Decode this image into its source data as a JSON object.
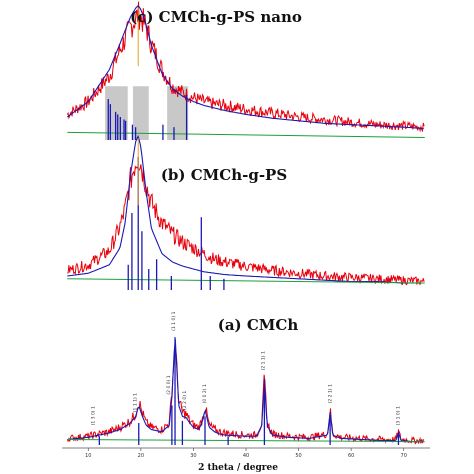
{
  "colors": {
    "observed": "#e8000b",
    "fit": "#1a1ab4",
    "background": "#1f9e3a",
    "sticks": "#1a1ab4",
    "shade": "#c8c8c8",
    "marker": "#e8a020"
  },
  "chart_data": {
    "type": "line",
    "xlabel": "2 theta / degree",
    "x_ticks": [
      "10",
      "20",
      "30",
      "40",
      "50",
      "60",
      "70"
    ],
    "xlim": [
      5,
      75
    ],
    "panels": [
      {
        "title": "(c) CMCh-g-PS nano",
        "series": [
          {
            "role": "observed",
            "x": [
              6,
              10,
              14,
              16,
              18,
              19,
              19.5,
              20,
              21,
              22,
              24,
              26,
              28,
              30,
              32,
              34,
              36,
              40,
              45,
              50,
              55,
              60,
              65,
              70,
              74
            ],
            "y": [
              0.2,
              0.3,
              0.5,
              0.7,
              0.88,
              0.95,
              0.98,
              0.96,
              0.88,
              0.75,
              0.55,
              0.42,
              0.37,
              0.33,
              0.3,
              0.28,
              0.27,
              0.24,
              0.21,
              0.18,
              0.16,
              0.14,
              0.12,
              0.11,
              0.1
            ]
          },
          {
            "role": "fit",
            "x": [
              6,
              10,
              14,
              16,
              18,
              19,
              19.5,
              20,
              21,
              22,
              24,
              26,
              28,
              30,
              32,
              34,
              36,
              40,
              45,
              50,
              55,
              60,
              65,
              70,
              74
            ],
            "y": [
              0.18,
              0.3,
              0.55,
              0.75,
              0.96,
              1.03,
              1.05,
              1.02,
              0.9,
              0.74,
              0.52,
              0.4,
              0.34,
              0.3,
              0.27,
              0.25,
              0.23,
              0.2,
              0.17,
              0.15,
              0.13,
              0.12,
              0.11,
              0.1,
              0.09
            ]
          },
          {
            "role": "background",
            "x": [
              6,
              74
            ],
            "y": [
              0.06,
              0.02
            ]
          }
        ],
        "sticks": [
          {
            "x": 13.8,
            "h": 0.32
          },
          {
            "x": 14.2,
            "h": 0.28
          },
          {
            "x": 15.2,
            "h": 0.22
          },
          {
            "x": 15.6,
            "h": 0.2
          },
          {
            "x": 16.1,
            "h": 0.18
          },
          {
            "x": 16.8,
            "h": 0.16
          },
          {
            "x": 17.1,
            "h": 0.15
          },
          {
            "x": 18.4,
            "h": 0.12
          },
          {
            "x": 19.0,
            "h": 0.1
          },
          {
            "x": 24.2,
            "h": 0.12
          },
          {
            "x": 26.3,
            "h": 0.1
          },
          {
            "x": 28.7,
            "h": 0.35
          }
        ],
        "shaded_bands": [
          [
            13.2,
            17.5
          ],
          [
            18.5,
            21.5
          ],
          [
            25.0,
            29.0
          ]
        ]
      },
      {
        "title": "(b) CMCh-g-PS",
        "series": [
          {
            "role": "observed",
            "x": [
              6,
              10,
              14,
              16,
              17,
              18,
              19,
              19.5,
              20,
              21,
              22,
              24,
              26,
              28,
              30,
              32,
              34,
              36,
              40,
              45,
              50,
              55,
              60,
              65,
              70,
              74
            ],
            "y": [
              0.14,
              0.18,
              0.28,
              0.45,
              0.58,
              0.78,
              0.92,
              0.95,
              0.9,
              0.75,
              0.62,
              0.48,
              0.4,
              0.34,
              0.3,
              0.26,
              0.22,
              0.2,
              0.17,
              0.14,
              0.12,
              0.1,
              0.09,
              0.08,
              0.07,
              0.06
            ]
          },
          {
            "role": "fit",
            "x": [
              6,
              10,
              14,
              16,
              17,
              18,
              19,
              19.5,
              20,
              21,
              22,
              24,
              26,
              28,
              30,
              32,
              34,
              36,
              40,
              45,
              50,
              55,
              60,
              65,
              70,
              74
            ],
            "y": [
              0.1,
              0.12,
              0.18,
              0.3,
              0.48,
              0.82,
              1.06,
              1.1,
              1.02,
              0.7,
              0.44,
              0.26,
              0.2,
              0.17,
              0.15,
              0.13,
              0.12,
              0.11,
              0.1,
              0.09,
              0.08,
              0.07,
              0.06,
              0.06,
              0.05,
              0.05
            ]
          },
          {
            "role": "background",
            "x": [
              6,
              74
            ],
            "y": [
              0.08,
              0.05
            ]
          }
        ],
        "sticks": [
          {
            "x": 17.6,
            "h": 0.18
          },
          {
            "x": 18.3,
            "h": 0.55
          },
          {
            "x": 19.5,
            "h": 0.95
          },
          {
            "x": 20.2,
            "h": 0.42
          },
          {
            "x": 21.5,
            "h": 0.15
          },
          {
            "x": 23.0,
            "h": 0.22
          },
          {
            "x": 25.8,
            "h": 0.1
          },
          {
            "x": 31.5,
            "h": 0.52
          },
          {
            "x": 33.2,
            "h": 0.1
          },
          {
            "x": 35.8,
            "h": 0.08
          }
        ],
        "shaded_bands": []
      },
      {
        "title": "(a) CMCh",
        "series": [
          {
            "role": "observed",
            "x": [
              6,
              10,
              12,
              14,
              16,
              18,
              19,
              19.6,
              20.2,
              21,
              22,
              24,
              25.4,
              25.9,
              26.5,
              27.2,
              27.9,
              28.6,
              29.3,
              30,
              31,
              31.6,
              32.2,
              33,
              34,
              35,
              36,
              40,
              42,
              43,
              43.5,
              44,
              45,
              48,
              52,
              55.5,
              56,
              56.5,
              58,
              62,
              66,
              68.5,
              69,
              69.5,
              72,
              74
            ],
            "y": [
              0.06,
              0.08,
              0.1,
              0.12,
              0.16,
              0.22,
              0.28,
              0.4,
              0.3,
              0.2,
              0.16,
              0.14,
              0.2,
              0.48,
              0.95,
              0.4,
              0.3,
              0.28,
              0.22,
              0.18,
              0.16,
              0.22,
              0.35,
              0.18,
              0.14,
              0.12,
              0.11,
              0.09,
              0.09,
              0.2,
              0.62,
              0.2,
              0.1,
              0.08,
              0.07,
              0.1,
              0.32,
              0.1,
              0.07,
              0.06,
              0.05,
              0.05,
              0.12,
              0.05,
              0.04,
              0.04
            ]
          },
          {
            "role": "fit",
            "x": [
              6,
              10,
              12,
              14,
              16,
              18,
              19,
              19.6,
              20.2,
              21,
              22,
              24,
              25.4,
              25.9,
              26.5,
              27.2,
              27.9,
              28.6,
              29.3,
              30,
              31,
              31.6,
              32.2,
              33,
              34,
              35,
              36,
              40,
              42,
              43,
              43.5,
              44,
              45,
              48,
              52,
              55.5,
              56,
              56.5,
              58,
              62,
              66,
              68.5,
              69,
              69.5,
              72,
              74
            ],
            "y": [
              0.05,
              0.07,
              0.09,
              0.11,
              0.14,
              0.2,
              0.26,
              0.36,
              0.27,
              0.18,
              0.14,
              0.12,
              0.18,
              0.44,
              1.0,
              0.36,
              0.26,
              0.25,
              0.2,
              0.16,
              0.14,
              0.2,
              0.32,
              0.16,
              0.12,
              0.1,
              0.09,
              0.08,
              0.08,
              0.18,
              0.58,
              0.18,
              0.09,
              0.07,
              0.06,
              0.09,
              0.3,
              0.09,
              0.06,
              0.05,
              0.04,
              0.04,
              0.11,
              0.04,
              0.03,
              0.03
            ]
          },
          {
            "role": "background",
            "x": [
              6,
              74
            ],
            "y": [
              0.05,
              0.03
            ]
          }
        ],
        "sticks": [
          {
            "x": 12.1,
            "h": 0.08
          },
          {
            "x": 19.6,
            "h": 0.2
          },
          {
            "x": 25.9,
            "h": 0.36
          },
          {
            "x": 26.5,
            "h": 0.98
          },
          {
            "x": 27.9,
            "h": 0.22
          },
          {
            "x": 32.2,
            "h": 0.26
          },
          {
            "x": 36.6,
            "h": 0.08
          },
          {
            "x": 43.5,
            "h": 0.6
          },
          {
            "x": 56.0,
            "h": 0.3
          },
          {
            "x": 69.0,
            "h": 0.12
          }
        ],
        "peak_labels": [
          {
            "x": 11.2,
            "h": 0.16,
            "text": "(1 3 0) 1"
          },
          {
            "x": 19.2,
            "h": 0.28,
            "text": "(1 1 1) 1"
          },
          {
            "x": 25.5,
            "h": 0.44,
            "text": "(2 0 0) 1"
          },
          {
            "x": 26.5,
            "h": 1.02,
            "text": "(1 1 0) 1"
          },
          {
            "x": 28.6,
            "h": 0.3,
            "text": "(2 2 0) 1"
          },
          {
            "x": 32.4,
            "h": 0.36,
            "text": "(0 0 2) 1"
          },
          {
            "x": 43.5,
            "h": 0.66,
            "text": "(2 1 1) 1"
          },
          {
            "x": 56.3,
            "h": 0.36,
            "text": "(2 2 1) 1"
          },
          {
            "x": 69.2,
            "h": 0.16,
            "text": "(3 1 0) 1"
          }
        ],
        "shaded_bands": []
      }
    ]
  }
}
